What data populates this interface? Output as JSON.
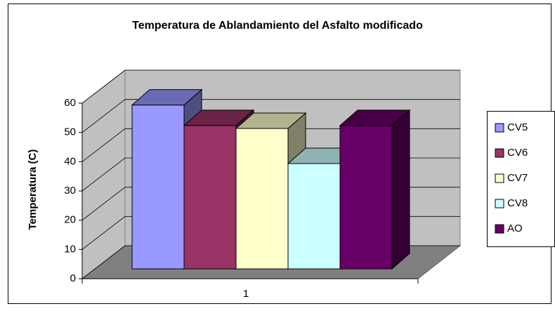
{
  "chart_data": {
    "type": "bar",
    "title": "Temperatura de Ablandamiento del Asfalto modificado",
    "y_label": "Temperatura (C)",
    "categories": [
      "1"
    ],
    "series": [
      {
        "name": "CV5",
        "color": "#9999ff",
        "values": [
          56
        ]
      },
      {
        "name": "CV6",
        "color": "#993366",
        "values": [
          49
        ]
      },
      {
        "name": "CV7",
        "color": "#ffffcc",
        "values": [
          48
        ]
      },
      {
        "name": "CV8",
        "color": "#ccffff",
        "values": [
          36
        ]
      },
      {
        "name": "AO",
        "color": "#660066",
        "values": [
          49
        ]
      }
    ],
    "ylim": [
      0,
      60
    ],
    "yticks": [
      0,
      10,
      20,
      30,
      40,
      50,
      60
    ],
    "grid": true,
    "legend": "right"
  }
}
